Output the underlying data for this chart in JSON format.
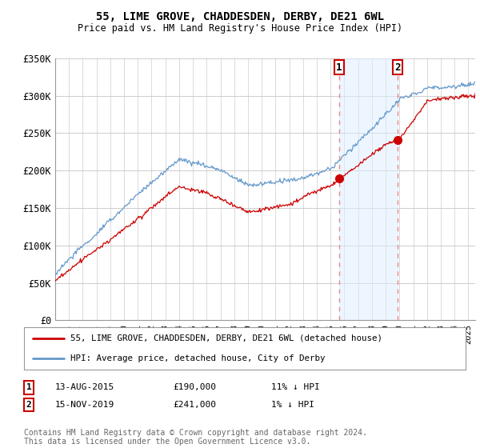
{
  "title": "55, LIME GROVE, CHADDESDEN, DERBY, DE21 6WL",
  "subtitle": "Price paid vs. HM Land Registry's House Price Index (HPI)",
  "ylim": [
    0,
    350000
  ],
  "yticks": [
    0,
    50000,
    100000,
    150000,
    200000,
    250000,
    300000,
    350000
  ],
  "ytick_labels": [
    "£0",
    "£50K",
    "£100K",
    "£150K",
    "£200K",
    "£250K",
    "£300K",
    "£350K"
  ],
  "xlim_start": 1995.0,
  "xlim_end": 2025.5,
  "transaction1": {
    "year": 2015.617,
    "price": 190000,
    "label": "1",
    "date": "13-AUG-2015",
    "hpi_diff": "11% ↓ HPI"
  },
  "transaction2": {
    "year": 2019.878,
    "price": 241000,
    "label": "2",
    "date": "15-NOV-2019",
    "hpi_diff": "1% ↓ HPI"
  },
  "legend_line1": "55, LIME GROVE, CHADDESDEN, DERBY, DE21 6WL (detached house)",
  "legend_line2": "HPI: Average price, detached house, City of Derby",
  "footer": "Contains HM Land Registry data © Crown copyright and database right 2024.\nThis data is licensed under the Open Government Licence v3.0.",
  "line_color_price": "#cc0000",
  "line_color_hpi": "#6699cc",
  "hpi_fill_color": "#ddeeff",
  "transaction_box_color": "#cc0000",
  "vline_color": "#ee8888",
  "grid_color": "#cccccc",
  "background_plot": "#ffffff",
  "background_fig": "#ffffff",
  "span_fill_color": "#ddeeff",
  "span_fill_alpha": 0.5
}
